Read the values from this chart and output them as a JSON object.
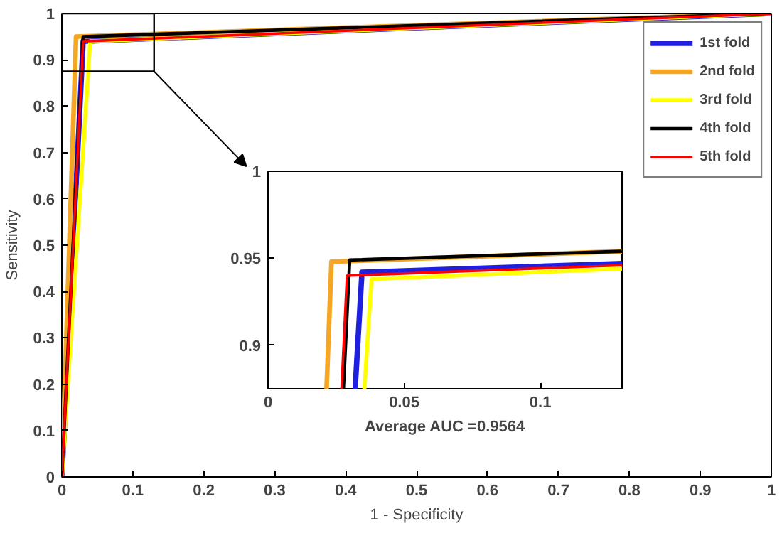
{
  "chart_data": [
    {
      "type": "line",
      "xlabel": "1 - Specificity",
      "ylabel": "Sensitivity",
      "xlim": [
        0,
        1
      ],
      "ylim": [
        0,
        1
      ],
      "xticks": [
        0,
        0.1,
        0.2,
        0.3,
        0.4,
        0.5,
        0.6,
        0.7,
        0.8,
        0.9,
        1
      ],
      "yticks": [
        0,
        0.1,
        0.2,
        0.3,
        0.4,
        0.5,
        0.6,
        0.7,
        0.8,
        0.9,
        1
      ],
      "grid": false,
      "legend": "top right",
      "marker": "none",
      "line_style": "solid",
      "series": [
        {
          "name": "1st fold",
          "color": "#1f1fe0",
          "x": [
            0,
            0.03,
            1
          ],
          "values": [
            0,
            0.94,
            1
          ]
        },
        {
          "name": "2nd fold",
          "color": "#f5a623",
          "x": [
            0,
            0.02,
            1
          ],
          "values": [
            0,
            0.95,
            1
          ]
        },
        {
          "name": "3rd fold",
          "color": "#ffff00",
          "x": [
            0,
            0.04,
            1
          ],
          "values": [
            0,
            0.94,
            1
          ]
        },
        {
          "name": "4th fold",
          "color": "#000000",
          "x": [
            0,
            0.03,
            1
          ],
          "values": [
            0,
            0.95,
            1
          ]
        },
        {
          "name": "5th fold",
          "color": "#ff0000",
          "x": [
            0,
            0.03,
            1
          ],
          "values": [
            0,
            0.94,
            1
          ]
        }
      ]
    },
    {
      "type": "line",
      "xlim": [
        0,
        0.13
      ],
      "ylim": [
        0.875,
        1
      ],
      "xticks": [
        0,
        0.05,
        0.1
      ],
      "yticks": [
        0.9,
        0.95,
        1
      ],
      "grid": false,
      "legend": false,
      "marker": "none",
      "line_style": "solid",
      "annotations": [
        "Average AUC =0.9564"
      ],
      "series": [
        {
          "color": "#1f1fe0",
          "x": [
            0.032,
            0.0345,
            0.13
          ],
          "values": [
            0.875,
            0.942,
            0.947
          ]
        },
        {
          "color": "#f5a623",
          "x": [
            0.0215,
            0.0233,
            0.13
          ],
          "values": [
            0.875,
            0.948,
            0.954
          ]
        },
        {
          "color": "#ffff00",
          "x": [
            0.0354,
            0.038,
            0.13
          ],
          "values": [
            0.875,
            0.938,
            0.944
          ]
        },
        {
          "color": "#000000",
          "x": [
            0.0277,
            0.03,
            0.13
          ],
          "values": [
            0.875,
            0.949,
            0.954
          ]
        },
        {
          "color": "#ff0000",
          "x": [
            0.027,
            0.029,
            0.13
          ],
          "values": [
            0.875,
            0.94,
            0.946
          ]
        }
      ]
    }
  ]
}
